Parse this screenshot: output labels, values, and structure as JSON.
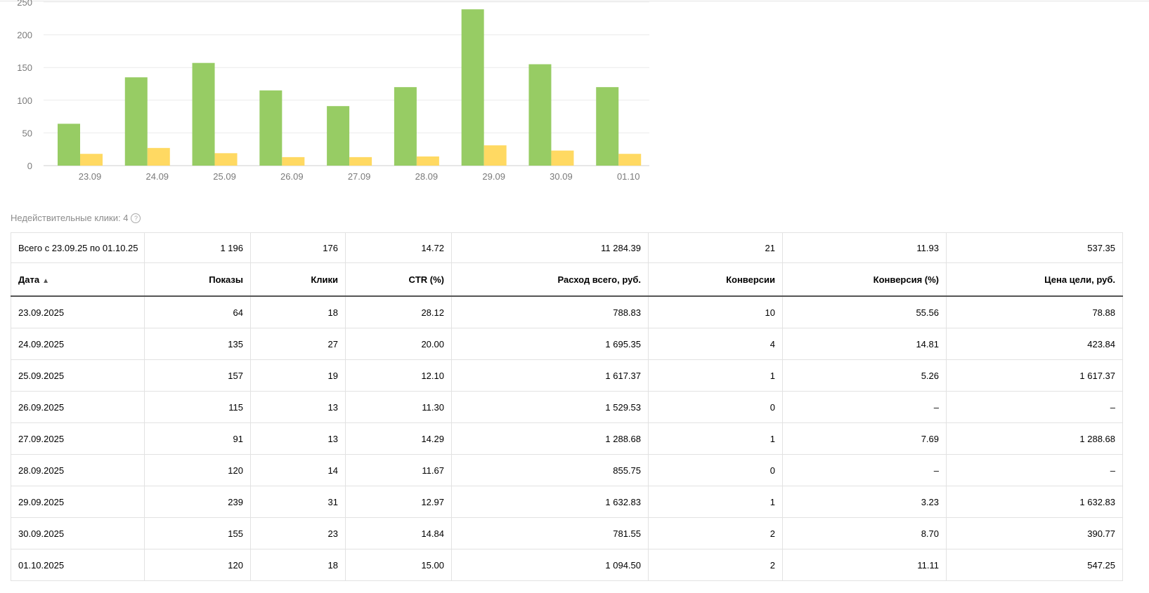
{
  "chart_data": {
    "type": "bar",
    "categories": [
      "23.09",
      "24.09",
      "25.09",
      "26.09",
      "27.09",
      "28.09",
      "29.09",
      "30.09",
      "01.10"
    ],
    "series": [
      {
        "values": [
          64,
          135,
          157,
          115,
          91,
          120,
          239,
          155,
          120
        ],
        "color": "#97cc64"
      },
      {
        "values": [
          18,
          27,
          19,
          13,
          13,
          14,
          31,
          23,
          18
        ],
        "color": "#ffd962"
      }
    ],
    "ylim": [
      0,
      250
    ],
    "yticks": [
      0,
      50,
      100,
      150,
      200,
      250
    ],
    "grid": true
  },
  "invalid_clicks": {
    "label": "Недействительные клики: 4",
    "icon": "help-icon"
  },
  "table": {
    "summary": [
      "Всего с 23.09.25 по 01.10.25",
      "1 196",
      "176",
      "14.72",
      "11 284.39",
      "21",
      "11.93",
      "537.35"
    ],
    "headers": [
      "Дата",
      "Показы",
      "Клики",
      "CTR (%)",
      "Расход всего, руб.",
      "Конверсии",
      "Конверсия (%)",
      "Цена цели, руб."
    ],
    "sort_indicator": "▲",
    "rows": [
      [
        "23.09.2025",
        "64",
        "18",
        "28.12",
        "788.83",
        "10",
        "55.56",
        "78.88"
      ],
      [
        "24.09.2025",
        "135",
        "27",
        "20.00",
        "1 695.35",
        "4",
        "14.81",
        "423.84"
      ],
      [
        "25.09.2025",
        "157",
        "19",
        "12.10",
        "1 617.37",
        "1",
        "5.26",
        "1 617.37"
      ],
      [
        "26.09.2025",
        "115",
        "13",
        "11.30",
        "1 529.53",
        "0",
        "–",
        "–"
      ],
      [
        "27.09.2025",
        "91",
        "13",
        "14.29",
        "1 288.68",
        "1",
        "7.69",
        "1 288.68"
      ],
      [
        "28.09.2025",
        "120",
        "14",
        "11.67",
        "855.75",
        "0",
        "–",
        "–"
      ],
      [
        "29.09.2025",
        "239",
        "31",
        "12.97",
        "1 632.83",
        "1",
        "3.23",
        "1 632.83"
      ],
      [
        "30.09.2025",
        "155",
        "23",
        "14.84",
        "781.55",
        "2",
        "8.70",
        "390.77"
      ],
      [
        "01.10.2025",
        "120",
        "18",
        "15.00",
        "1 094.50",
        "2",
        "11.11",
        "547.25"
      ]
    ]
  }
}
